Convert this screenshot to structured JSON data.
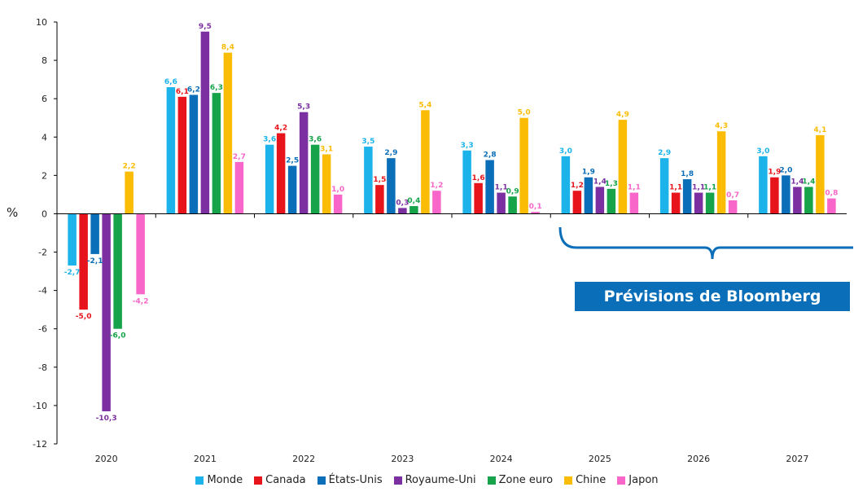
{
  "chart_data": {
    "type": "bar",
    "ylabel": "%",
    "ylim": [
      -12,
      10
    ],
    "yticks": [
      -12,
      -10,
      -8,
      -6,
      -4,
      -2,
      0,
      2,
      4,
      6,
      8,
      10
    ],
    "categories": [
      "2020",
      "2021",
      "2022",
      "2023",
      "2024",
      "2025",
      "2026",
      "2027"
    ],
    "series": [
      {
        "name": "Monde",
        "color": "#1bb3ea",
        "values": [
          -2.7,
          6.6,
          3.6,
          3.5,
          3.3,
          3.0,
          2.9,
          3.0
        ],
        "labels": [
          "-2,7",
          "6,6",
          "3,6",
          "3,5",
          "3,3",
          "3,0",
          "2,9",
          "3,0"
        ]
      },
      {
        "name": "Canada",
        "color": "#e8141b",
        "values": [
          -5.0,
          6.1,
          4.2,
          1.5,
          1.6,
          1.2,
          1.1,
          1.9
        ],
        "labels": [
          "-5,0",
          "6,1",
          "4,2",
          "1,5",
          "1,6",
          "1,2",
          "1,1",
          "1,9"
        ]
      },
      {
        "name": "États-Unis",
        "color": "#0a6eb8",
        "values": [
          -2.1,
          6.2,
          2.5,
          2.9,
          2.8,
          1.9,
          1.8,
          2.0
        ],
        "labels": [
          "-2,1",
          "6,2",
          "2,5",
          "2,9",
          "2,8",
          "1,9",
          "1,8",
          "2,0"
        ]
      },
      {
        "name": "Royaume-Uni",
        "color": "#7b2fa0",
        "values": [
          -10.3,
          9.5,
          5.3,
          0.3,
          1.1,
          1.4,
          1.1,
          1.4
        ],
        "labels": [
          "-10,3",
          "9,5",
          "5,3",
          "0,3",
          "1,1",
          "1,4",
          "1,1",
          "1,4"
        ]
      },
      {
        "name": "Zone euro",
        "color": "#16a34a",
        "values": [
          -6.0,
          6.3,
          3.6,
          0.4,
          0.9,
          1.3,
          1.1,
          1.4
        ],
        "labels": [
          "-6,0",
          "6,3",
          "3,6",
          "0,4",
          "0,9",
          "1,3",
          "1,1",
          "1,4"
        ]
      },
      {
        "name": "Chine",
        "color": "#fbbc05",
        "values": [
          2.2,
          8.4,
          3.1,
          5.4,
          5.0,
          4.9,
          4.3,
          4.1
        ],
        "labels": [
          "2,2",
          "8,4",
          "3,1",
          "5,4",
          "5,0",
          "4,9",
          "4,3",
          "4,1"
        ]
      },
      {
        "name": "Japon",
        "color": "#f766c8",
        "values": [
          -4.2,
          2.7,
          1.0,
          1.2,
          0.1,
          1.1,
          0.7,
          0.8
        ],
        "labels": [
          "-4,2",
          "2,7",
          "1,0",
          "1,2",
          "0,1",
          "1,1",
          "0,7",
          "0,8"
        ]
      }
    ],
    "annotation": "Prévisions de Bloomberg",
    "legend_position": "bottom"
  }
}
